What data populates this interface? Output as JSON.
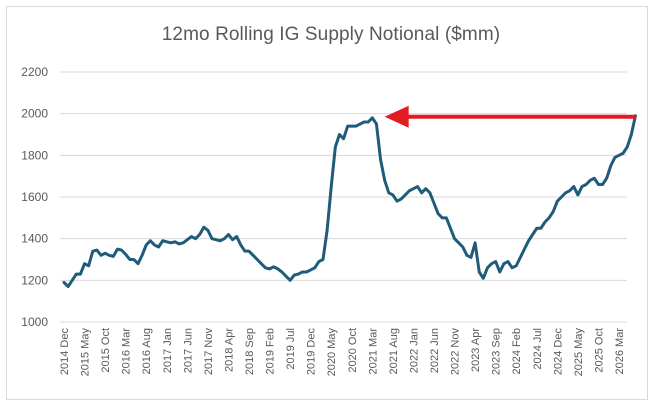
{
  "chart_data": {
    "type": "line",
    "title": "12mo Rolling IG Supply Notional ($mm)",
    "ylim": [
      1000,
      2200
    ],
    "yticks": [
      1000,
      1200,
      1400,
      1600,
      1800,
      2000,
      2200
    ],
    "xlim": [
      0,
      136
    ],
    "grid": "horizontal",
    "colors": {
      "line": "#1f5c7a",
      "arrow": "#e31b23",
      "grid": "#d9d9d9",
      "text": "#595959"
    },
    "xticks": [
      {
        "x": 0,
        "label": "2014 Dec"
      },
      {
        "x": 5,
        "label": "2015 May"
      },
      {
        "x": 10,
        "label": "2015 Oct"
      },
      {
        "x": 15,
        "label": "2016 Mar"
      },
      {
        "x": 20,
        "label": "2016 Aug"
      },
      {
        "x": 25,
        "label": "2017 Jan"
      },
      {
        "x": 30,
        "label": "2017 Jun"
      },
      {
        "x": 35,
        "label": "2017 Nov"
      },
      {
        "x": 40,
        "label": "2018 Apr"
      },
      {
        "x": 45,
        "label": "2018 Sep"
      },
      {
        "x": 50,
        "label": "2019 Feb"
      },
      {
        "x": 55,
        "label": "2019 Jul"
      },
      {
        "x": 60,
        "label": "2019 Dec"
      },
      {
        "x": 65,
        "label": "2020 May"
      },
      {
        "x": 70,
        "label": "2020 Oct"
      },
      {
        "x": 75,
        "label": "2021 Mar"
      },
      {
        "x": 80,
        "label": "2021 Aug"
      },
      {
        "x": 85,
        "label": "2022 Jan"
      },
      {
        "x": 90,
        "label": "2022 Jun"
      },
      {
        "x": 95,
        "label": "2022 Nov"
      },
      {
        "x": 100,
        "label": "2023 Apr"
      },
      {
        "x": 105,
        "label": "2023 Sep"
      },
      {
        "x": 110,
        "label": "2024 Feb"
      },
      {
        "x": 115,
        "label": "2024 Jul"
      },
      {
        "x": 120,
        "label": "2024 Dec"
      },
      {
        "x": 125,
        "label": "2025 May"
      },
      {
        "x": 130,
        "label": "2025 Oct"
      },
      {
        "x": 135,
        "label": "2026 Mar"
      }
    ],
    "series": [
      {
        "points": [
          [
            0,
            1190
          ],
          [
            1,
            1170
          ],
          [
            2,
            1200
          ],
          [
            3,
            1230
          ],
          [
            4,
            1230
          ],
          [
            5,
            1280
          ],
          [
            6,
            1270
          ],
          [
            7,
            1340
          ],
          [
            8,
            1345
          ],
          [
            9,
            1320
          ],
          [
            10,
            1330
          ],
          [
            11,
            1320
          ],
          [
            12,
            1315
          ],
          [
            13,
            1350
          ],
          [
            14,
            1345
          ],
          [
            15,
            1325
          ],
          [
            16,
            1300
          ],
          [
            17,
            1300
          ],
          [
            18,
            1280
          ],
          [
            19,
            1320
          ],
          [
            20,
            1370
          ],
          [
            21,
            1390
          ],
          [
            22,
            1370
          ],
          [
            23,
            1360
          ],
          [
            24,
            1390
          ],
          [
            25,
            1385
          ],
          [
            26,
            1380
          ],
          [
            27,
            1385
          ],
          [
            28,
            1375
          ],
          [
            29,
            1380
          ],
          [
            30,
            1395
          ],
          [
            31,
            1410
          ],
          [
            32,
            1400
          ],
          [
            33,
            1420
          ],
          [
            34,
            1455
          ],
          [
            35,
            1440
          ],
          [
            36,
            1400
          ],
          [
            37,
            1395
          ],
          [
            38,
            1390
          ],
          [
            39,
            1400
          ],
          [
            40,
            1420
          ],
          [
            41,
            1395
          ],
          [
            42,
            1410
          ],
          [
            43,
            1370
          ],
          [
            44,
            1340
          ],
          [
            45,
            1340
          ],
          [
            46,
            1320
          ],
          [
            47,
            1300
          ],
          [
            48,
            1280
          ],
          [
            49,
            1260
          ],
          [
            50,
            1255
          ],
          [
            51,
            1265
          ],
          [
            52,
            1255
          ],
          [
            53,
            1240
          ],
          [
            54,
            1220
          ],
          [
            55,
            1200
          ],
          [
            56,
            1225
          ],
          [
            57,
            1230
          ],
          [
            58,
            1240
          ],
          [
            59,
            1240
          ],
          [
            60,
            1250
          ],
          [
            61,
            1260
          ],
          [
            62,
            1290
          ],
          [
            63,
            1300
          ],
          [
            64,
            1440
          ],
          [
            65,
            1650
          ],
          [
            66,
            1840
          ],
          [
            67,
            1900
          ],
          [
            68,
            1880
          ],
          [
            69,
            1940
          ],
          [
            70,
            1940
          ],
          [
            71,
            1940
          ],
          [
            72,
            1950
          ],
          [
            73,
            1960
          ],
          [
            74,
            1960
          ],
          [
            75,
            1980
          ],
          [
            76,
            1950
          ],
          [
            77,
            1780
          ],
          [
            78,
            1680
          ],
          [
            79,
            1620
          ],
          [
            80,
            1610
          ],
          [
            81,
            1580
          ],
          [
            82,
            1590
          ],
          [
            83,
            1610
          ],
          [
            84,
            1630
          ],
          [
            85,
            1640
          ],
          [
            86,
            1650
          ],
          [
            87,
            1620
          ],
          [
            88,
            1640
          ],
          [
            89,
            1620
          ],
          [
            90,
            1570
          ],
          [
            91,
            1520
          ],
          [
            92,
            1500
          ],
          [
            93,
            1500
          ],
          [
            94,
            1450
          ],
          [
            95,
            1400
          ],
          [
            96,
            1380
          ],
          [
            97,
            1360
          ],
          [
            98,
            1320
          ],
          [
            99,
            1310
          ],
          [
            100,
            1380
          ],
          [
            101,
            1240
          ],
          [
            102,
            1210
          ],
          [
            103,
            1260
          ],
          [
            104,
            1280
          ],
          [
            105,
            1290
          ],
          [
            106,
            1240
          ],
          [
            107,
            1280
          ],
          [
            108,
            1290
          ],
          [
            109,
            1260
          ],
          [
            110,
            1270
          ],
          [
            111,
            1310
          ],
          [
            112,
            1350
          ],
          [
            113,
            1390
          ],
          [
            114,
            1420
          ],
          [
            115,
            1450
          ],
          [
            116,
            1450
          ],
          [
            117,
            1480
          ],
          [
            118,
            1500
          ],
          [
            119,
            1530
          ],
          [
            120,
            1580
          ],
          [
            121,
            1600
          ],
          [
            122,
            1620
          ],
          [
            123,
            1630
          ],
          [
            124,
            1650
          ],
          [
            125,
            1610
          ],
          [
            126,
            1650
          ],
          [
            127,
            1660
          ],
          [
            128,
            1680
          ],
          [
            129,
            1690
          ],
          [
            130,
            1660
          ],
          [
            131,
            1660
          ],
          [
            132,
            1690
          ],
          [
            133,
            1750
          ],
          [
            134,
            1790
          ],
          [
            135,
            1800
          ],
          [
            136,
            1810
          ],
          [
            137,
            1840
          ],
          [
            138,
            1900
          ],
          [
            139,
            1990
          ]
        ]
      }
    ],
    "annotations": [
      {
        "type": "arrow",
        "from": [
          139,
          1985
        ],
        "to": [
          78,
          1985
        ],
        "color": "#e31b23"
      }
    ]
  }
}
